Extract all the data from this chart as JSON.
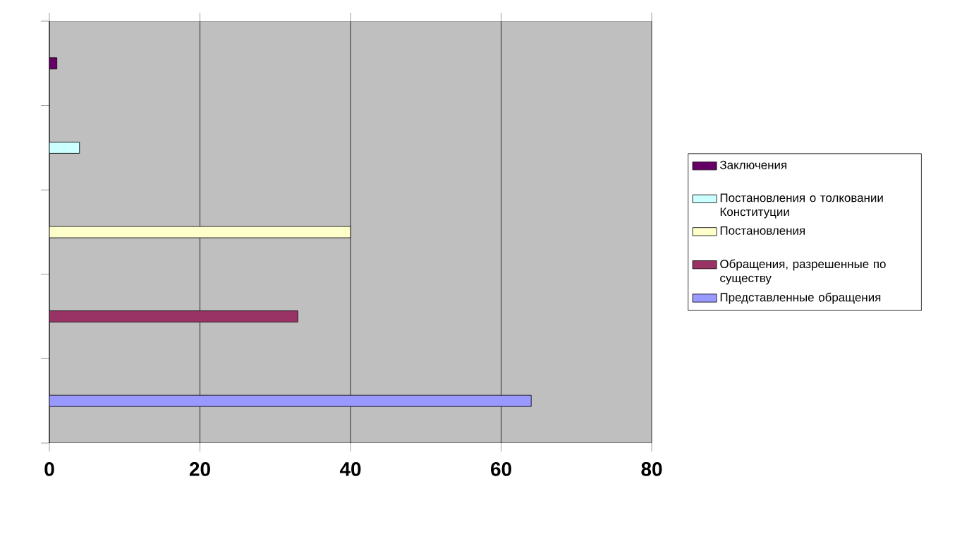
{
  "chart_data": {
    "type": "bar",
    "orientation": "horizontal",
    "categories": [
      null,
      null,
      null,
      null,
      null
    ],
    "series": [
      {
        "name": "Заключения",
        "color": "#660066",
        "values": [
          1,
          null,
          null,
          null,
          null
        ]
      },
      {
        "name": "Постановления о толковании Конституции",
        "color": "#ccffff",
        "values": [
          null,
          4,
          null,
          null,
          null
        ]
      },
      {
        "name": "Постановления",
        "color": "#ffffcc",
        "values": [
          null,
          null,
          40,
          null,
          null
        ]
      },
      {
        "name": "Обращения, разрешенные по существу",
        "color": "#993366",
        "values": [
          null,
          null,
          null,
          33,
          null
        ]
      },
      {
        "name": "Представленные обращения",
        "color": "#9999ff",
        "values": [
          null,
          null,
          null,
          null,
          64
        ]
      }
    ],
    "xlim": [
      0,
      80
    ],
    "xticks": [
      0,
      20,
      40,
      60,
      80
    ],
    "grid": "x",
    "legend": "right"
  }
}
